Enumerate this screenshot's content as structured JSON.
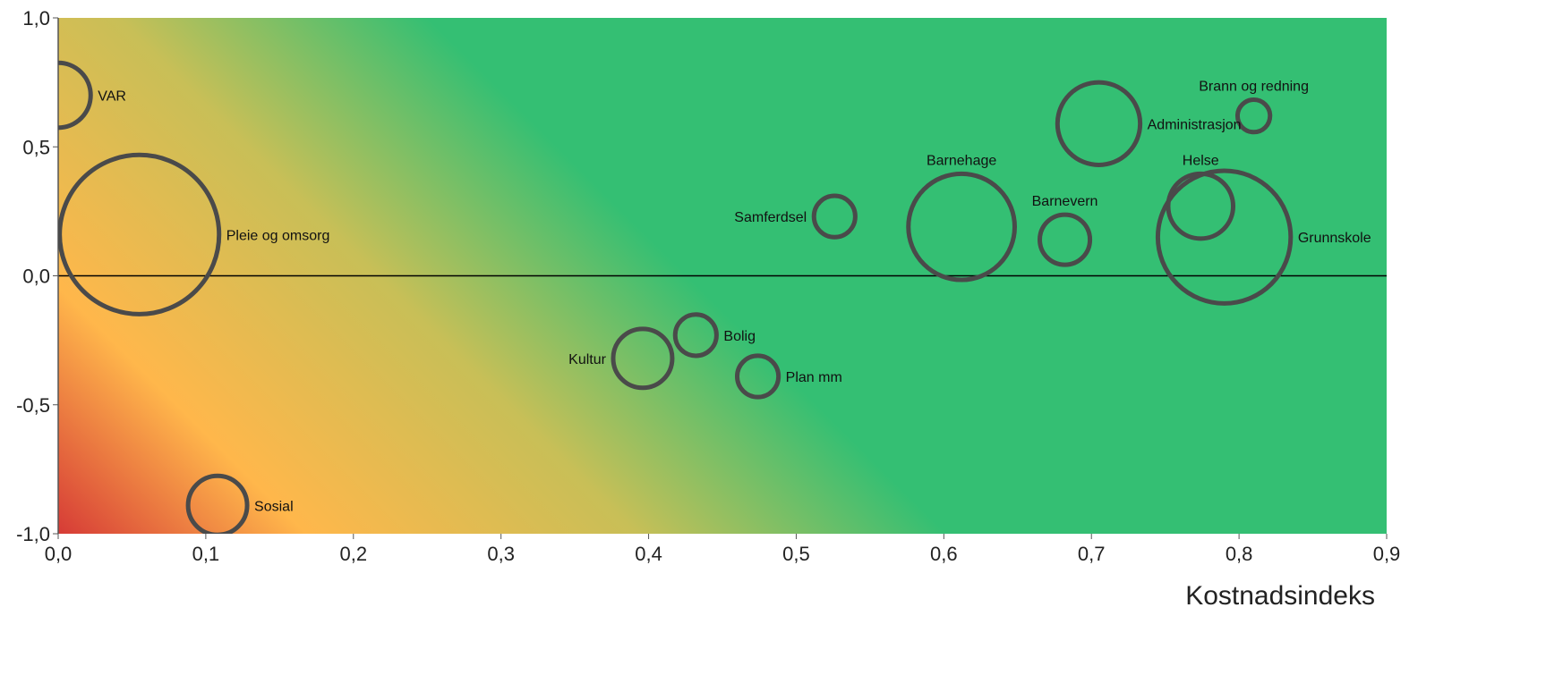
{
  "chart_data": {
    "type": "bubble",
    "xlabel": "Kostnadsindeks",
    "ylabel": "",
    "xlim": [
      0,
      0.9
    ],
    "ylim": [
      -1,
      1
    ],
    "x_ticks": [
      "0,0",
      "0,1",
      "0,2",
      "0,3",
      "0,4",
      "0,5",
      "0,6",
      "0,7",
      "0,8",
      "0,9"
    ],
    "y_ticks": [
      "-1,0",
      "-0,5",
      "0,0",
      "0,5",
      "1,0"
    ],
    "background": "diagonal gradient from red (bottom-left) through orange and yellow to green",
    "colors": {
      "red": "#d63b36",
      "orange": "#ffb74b",
      "yellow": "#c8bf57",
      "green": "#34bf73",
      "bubble_stroke": "#4a4a4a"
    },
    "bubbles": [
      {
        "label": "VAR",
        "x": 0.0,
        "y": 0.7,
        "size": 0.022,
        "label_side": "right"
      },
      {
        "label": "Pleie og omsorg",
        "x": 0.055,
        "y": 0.16,
        "size": 0.054,
        "label_side": "right"
      },
      {
        "label": "Sosial",
        "x": 0.108,
        "y": -0.89,
        "size": 0.02,
        "label_side": "right"
      },
      {
        "label": "Kultur",
        "x": 0.396,
        "y": -0.32,
        "size": 0.02,
        "label_side": "left"
      },
      {
        "label": "Bolig",
        "x": 0.432,
        "y": -0.23,
        "size": 0.014,
        "label_side": "right"
      },
      {
        "label": "Plan mm",
        "x": 0.474,
        "y": -0.39,
        "size": 0.014,
        "label_side": "right"
      },
      {
        "label": "Samferdsel",
        "x": 0.526,
        "y": 0.23,
        "size": 0.014,
        "label_side": "left"
      },
      {
        "label": "Barnehage",
        "x": 0.612,
        "y": 0.19,
        "size": 0.036,
        "label_side": "top"
      },
      {
        "label": "Barnevern",
        "x": 0.682,
        "y": 0.14,
        "size": 0.017,
        "label_side": "top"
      },
      {
        "label": "Administrasjon",
        "x": 0.705,
        "y": 0.59,
        "size": 0.028,
        "label_side": "right"
      },
      {
        "label": "Brann og redning",
        "x": 0.81,
        "y": 0.62,
        "size": 0.011,
        "label_side": "top"
      },
      {
        "label": "Helse",
        "x": 0.774,
        "y": 0.27,
        "size": 0.022,
        "label_side": "top"
      },
      {
        "label": "Grunnskole",
        "x": 0.79,
        "y": 0.15,
        "size": 0.045,
        "label_side": "right"
      }
    ]
  }
}
